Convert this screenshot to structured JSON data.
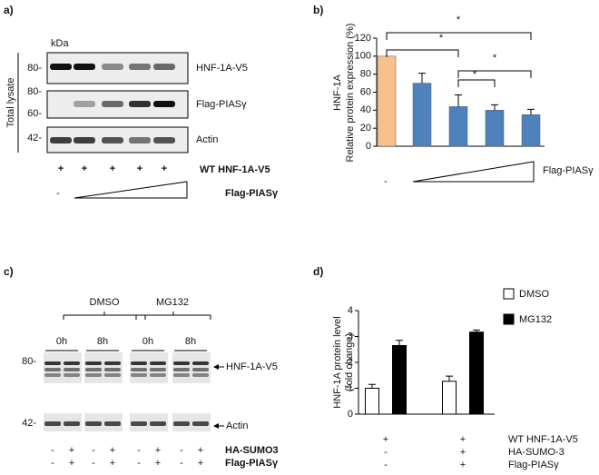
{
  "panels": {
    "a": "a)",
    "b": "b)",
    "c": "c)",
    "d": "d)"
  },
  "blot_a": {
    "kda": "kDa",
    "side_label": "Total lysate",
    "markers": [
      "80-",
      "80-",
      "60-",
      "42-"
    ],
    "bands": [
      "HNF-1A-V5",
      "Flag-PIASγ",
      "Actin"
    ],
    "rows": [
      {
        "signs": [
          "+",
          "+",
          "+",
          "+",
          "+"
        ],
        "label": "WT HNF-1A-V5"
      },
      {
        "signs": [
          "-"
        ],
        "label": "Flag-PIASγ"
      }
    ]
  },
  "blot_c": {
    "groups": [
      "DMSO",
      "MG132"
    ],
    "times": [
      "0h",
      "8h",
      "0h",
      "8h"
    ],
    "markers": [
      "80-",
      "42-"
    ],
    "bands": [
      "HNF-1A-V5",
      "Actin"
    ],
    "rows": [
      {
        "label": "HA-SUMO3",
        "signs": [
          "-",
          "+",
          "-",
          "+",
          "-",
          "+",
          "-",
          "+"
        ]
      },
      {
        "label": "Flag-PIASγ",
        "signs": [
          "-",
          "+",
          "-",
          "+",
          "-",
          "+",
          "-",
          "+"
        ]
      }
    ]
  },
  "chart_data": [
    {
      "type": "bar",
      "y_label": [
        "HNF-1A",
        "Relative protein expression (%)"
      ],
      "categories": [
        null,
        null,
        null,
        null,
        null
      ],
      "values": [
        100,
        70,
        44,
        40,
        35
      ],
      "errors": [
        null,
        11,
        13,
        6,
        6
      ],
      "colors": [
        "#f9c08f",
        "#4f81bd",
        "#4f81bd",
        "#4f81bd",
        "#4f81bd"
      ],
      "ylim": [
        0,
        120
      ],
      "yticks": [
        0,
        20,
        40,
        60,
        80,
        100,
        120
      ],
      "annotations": [
        "*",
        "*",
        "*",
        "*"
      ],
      "x_sign": "-",
      "x_label": "Flag-PIASγ"
    },
    {
      "type": "grouped_bar",
      "y_label": [
        "HNF-1A protein level",
        "(fold change)"
      ],
      "categories": [
        null,
        null
      ],
      "series": [
        {
          "name": "DMSO",
          "color": "#ffffff",
          "values": [
            1.0,
            1.27
          ],
          "errors": [
            0.15,
            0.2
          ]
        },
        {
          "name": "MG132",
          "color": "#000000",
          "values": [
            2.65,
            3.17
          ],
          "errors": [
            0.2,
            0.08
          ]
        }
      ],
      "ylim": [
        0,
        4
      ],
      "yticks": [
        0,
        1,
        2,
        3,
        4
      ],
      "conditions": [
        {
          "label": "WT HNF-1A-V5",
          "signs": [
            "+",
            "+"
          ]
        },
        {
          "label": "HA-SUMO-3",
          "signs": [
            "-",
            "+"
          ]
        },
        {
          "label": "Flag-PIASγ",
          "signs": [
            "-",
            "+"
          ]
        }
      ]
    }
  ]
}
